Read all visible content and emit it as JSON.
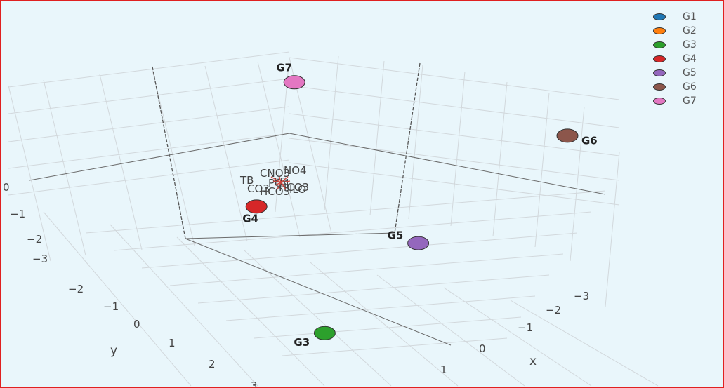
{
  "chart_data": {
    "type": "scatter",
    "projection": "3d",
    "xlabel": "x",
    "ylabel": "y",
    "x_ticks": [
      "−3",
      "−2",
      "−1",
      "0",
      "1"
    ],
    "y_ticks": [
      "−2",
      "−1",
      "0",
      "1",
      "2",
      "3"
    ],
    "z_ticks": [
      "0",
      "−1",
      "−2",
      "−3"
    ],
    "grid": true,
    "legend_position": "top-right",
    "series": [
      {
        "name": "G1",
        "color": "#1f77b4",
        "x": -3.2,
        "y": -3.5,
        "z": 0.4
      },
      {
        "name": "G2",
        "color": "#ff7f0e",
        "x": -3.1,
        "y": -3.4,
        "z": 0.3
      },
      {
        "name": "G3",
        "color": "#2ca02c",
        "x": 1.0,
        "y": 0.8,
        "z": -2.6
      },
      {
        "name": "G4",
        "color": "#d62728",
        "x": -0.3,
        "y": 0.2,
        "z": -1.0
      },
      {
        "name": "G5",
        "color": "#9467bd",
        "x": 1.3,
        "y": -0.6,
        "z": -0.9
      },
      {
        "name": "G6",
        "color": "#8c564b",
        "x": 2.2,
        "y": -2.2,
        "z": 1.6
      },
      {
        "name": "G7",
        "color": "#e377c2",
        "x": -0.8,
        "y": -1.3,
        "z": 0.8
      }
    ],
    "center_labels": [
      "TB",
      "CNO3",
      "NO4",
      "PO4",
      "CO3",
      "HCO3",
      "HCO3",
      "FE",
      "ILO"
    ]
  }
}
